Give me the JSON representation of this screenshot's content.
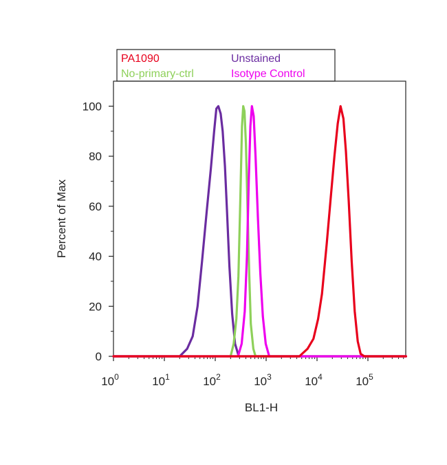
{
  "chart_data": {
    "type": "line",
    "xlabel": "BL1-H",
    "ylabel": "Percent of Max",
    "x_scale": "log",
    "xlim": [
      1,
      560000
    ],
    "ylim": [
      0,
      110
    ],
    "x_ticks": [
      {
        "base": "10",
        "exp": "0",
        "value": 1
      },
      {
        "base": "10",
        "exp": "1",
        "value": 10
      },
      {
        "base": "10",
        "exp": "2",
        "value": 100
      },
      {
        "base": "10",
        "exp": "3",
        "value": 1000
      },
      {
        "base": "10",
        "exp": "4",
        "value": 10000
      },
      {
        "base": "10",
        "exp": "5",
        "value": 100000
      }
    ],
    "y_ticks": [
      {
        "label": "0",
        "value": 0
      },
      {
        "label": "20",
        "value": 20
      },
      {
        "label": "40",
        "value": 40
      },
      {
        "label": "60",
        "value": 60
      },
      {
        "label": "80",
        "value": 80
      },
      {
        "label": "100",
        "value": 100
      }
    ],
    "grid": false,
    "legend_position": "top-left",
    "series": [
      {
        "name": "Unstained",
        "color": "#6a2ca0",
        "points": [
          [
            1,
            0
          ],
          [
            20,
            0
          ],
          [
            28,
            3
          ],
          [
            36,
            8
          ],
          [
            45,
            20
          ],
          [
            55,
            38
          ],
          [
            68,
            58
          ],
          [
            82,
            75
          ],
          [
            95,
            90
          ],
          [
            105,
            99
          ],
          [
            115,
            100
          ],
          [
            128,
            97
          ],
          [
            140,
            90
          ],
          [
            155,
            76
          ],
          [
            170,
            58
          ],
          [
            190,
            36
          ],
          [
            215,
            17
          ],
          [
            245,
            5
          ],
          [
            290,
            0
          ],
          [
            560000,
            0
          ]
        ]
      },
      {
        "name": "No-primary-ctrl",
        "color": "#8ed05a",
        "points": [
          [
            1,
            0
          ],
          [
            200,
            0
          ],
          [
            230,
            5
          ],
          [
            260,
            15
          ],
          [
            285,
            32
          ],
          [
            310,
            62
          ],
          [
            335,
            92
          ],
          [
            355,
            100
          ],
          [
            375,
            98
          ],
          [
            400,
            85
          ],
          [
            430,
            60
          ],
          [
            465,
            33
          ],
          [
            500,
            13
          ],
          [
            560,
            3
          ],
          [
            620,
            0
          ],
          [
            560000,
            0
          ]
        ]
      },
      {
        "name": "Isotype Control",
        "color": "#ee00ee",
        "points": [
          [
            1,
            0
          ],
          [
            280,
            0
          ],
          [
            330,
            5
          ],
          [
            380,
            18
          ],
          [
            420,
            40
          ],
          [
            455,
            70
          ],
          [
            490,
            92
          ],
          [
            525,
            100
          ],
          [
            570,
            96
          ],
          [
            620,
            80
          ],
          [
            690,
            55
          ],
          [
            770,
            33
          ],
          [
            860,
            16
          ],
          [
            980,
            5
          ],
          [
            1150,
            0
          ],
          [
            560000,
            0
          ]
        ]
      },
      {
        "name": "PA1090",
        "color": "#e8001c",
        "points": [
          [
            1,
            0
          ],
          [
            4500,
            0
          ],
          [
            6500,
            3
          ],
          [
            8500,
            7
          ],
          [
            10500,
            15
          ],
          [
            12500,
            25
          ],
          [
            15500,
            45
          ],
          [
            18500,
            63
          ],
          [
            22000,
            80
          ],
          [
            25500,
            93
          ],
          [
            29000,
            100
          ],
          [
            33000,
            95
          ],
          [
            37000,
            82
          ],
          [
            42000,
            62
          ],
          [
            48000,
            38
          ],
          [
            55000,
            18
          ],
          [
            63000,
            6
          ],
          [
            72000,
            1
          ],
          [
            85000,
            0
          ],
          [
            560000,
            0
          ]
        ]
      }
    ],
    "legend": {
      "entries": [
        {
          "label": "PA1090",
          "color": "#e8001c"
        },
        {
          "label": "Unstained",
          "color": "#6a2ca0"
        },
        {
          "label": "No-primary-ctrl",
          "color": "#8ed05a"
        },
        {
          "label": "Isotype Control",
          "color": "#ee00ee"
        }
      ]
    }
  }
}
